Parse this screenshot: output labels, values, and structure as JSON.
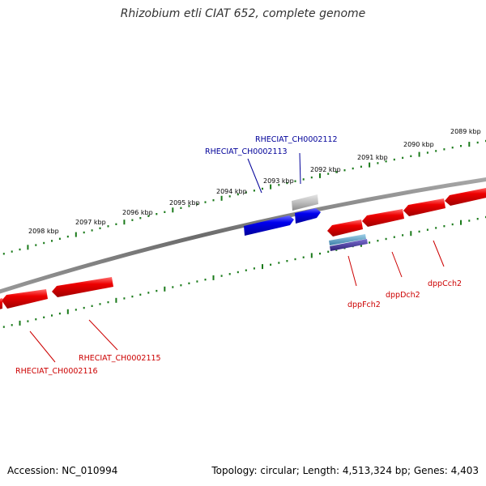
{
  "title": "Rhizobium etli CIAT 652, complete genome",
  "footer": {
    "accession": "Accession: NC_010994",
    "topology": "Topology: circular; Length: 4,513,324 bp; Genes: 4,403"
  },
  "ruler_labels": [
    "2089 kbp",
    "2090 kbp",
    "2091 kbp",
    "2092 kbp",
    "2093 kbp",
    "2094 kbp",
    "2095 kbp",
    "2096 kbp",
    "2097 kbp",
    "2098 kbp"
  ],
  "colors": {
    "forward_gene": "#0000dd",
    "reverse_gene": "#ee0000",
    "pseudo_gene": "#b0b0b0",
    "backbone": "#808080",
    "tick": "#1a7a1a",
    "forward_label": "#000099",
    "reverse_label": "#cc0000"
  },
  "genes": {
    "rheciat_ch0002112": "RHECIAT_CH0002112",
    "rheciat_ch0002113": "RHECIAT_CH0002113",
    "dppfch2": "dppFch2",
    "dppdch2": "dppDch2",
    "dppcch2": "dppCch2",
    "rheciat_ch0002115": "RHECIAT_CH0002115",
    "rheciat_ch0002116": "RHECIAT_CH0002116"
  }
}
